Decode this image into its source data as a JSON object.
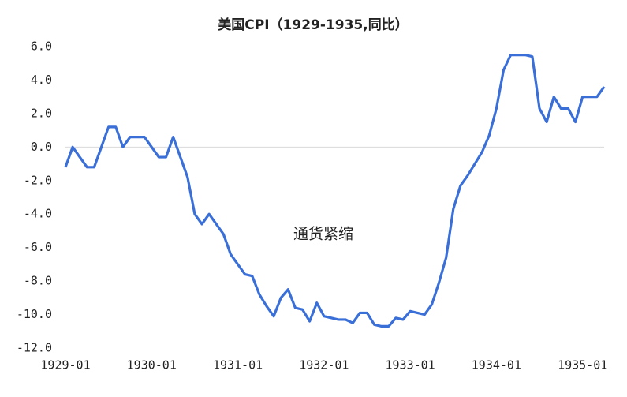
{
  "chart_data": {
    "type": "line",
    "title": "美国CPI（1929-1935,同比）",
    "annotations": [
      "通货紧缩"
    ],
    "categories": [
      "1929-01",
      null,
      null,
      null,
      null,
      null,
      null,
      null,
      null,
      null,
      null,
      null,
      "1930-01",
      null,
      null,
      null,
      null,
      null,
      null,
      null,
      null,
      null,
      null,
      null,
      "1931-01",
      null,
      null,
      null,
      null,
      null,
      null,
      null,
      null,
      null,
      null,
      null,
      "1932-01",
      null,
      null,
      null,
      null,
      null,
      null,
      null,
      null,
      null,
      null,
      null,
      "1933-01",
      null,
      null,
      null,
      null,
      null,
      null,
      null,
      null,
      null,
      null,
      null,
      "1934-01",
      null,
      null,
      null,
      null,
      null,
      null,
      null,
      null,
      null,
      null,
      null,
      "1935-01",
      null,
      null,
      null
    ],
    "values": [
      -1.2,
      0.0,
      -0.6,
      -1.2,
      -1.2,
      0.0,
      1.2,
      1.2,
      0.0,
      0.6,
      0.6,
      0.6,
      0.0,
      -0.6,
      -0.6,
      0.6,
      -0.6,
      -1.8,
      -4.0,
      -4.6,
      -4.0,
      -4.6,
      -5.2,
      -6.4,
      -7.0,
      -7.6,
      -7.7,
      -8.8,
      -9.5,
      -10.1,
      -9.0,
      -8.5,
      -9.6,
      -9.7,
      -10.4,
      -9.3,
      -10.1,
      -10.2,
      -10.3,
      -10.3,
      -10.5,
      -9.9,
      -9.9,
      -10.6,
      -10.7,
      -10.7,
      -10.2,
      -10.3,
      -9.8,
      -9.9,
      -10.0,
      -9.4,
      -8.1,
      -6.6,
      -3.7,
      -2.3,
      -1.7,
      -1.0,
      -0.3,
      0.7,
      2.3,
      4.6,
      5.5,
      5.5,
      5.5,
      5.4,
      2.3,
      1.5,
      3.0,
      2.3,
      2.3,
      1.5,
      3.0,
      3.0,
      3.0,
      3.6
    ],
    "color": "#3a6fd8",
    "ylim": [
      -12,
      6
    ],
    "yticks": [
      {
        "value": -12,
        "label": "-12.0"
      },
      {
        "value": -10,
        "label": "-10.0"
      },
      {
        "value": -8,
        "label": "-8.0"
      },
      {
        "value": -6,
        "label": "-6.0"
      },
      {
        "value": -4,
        "label": "-4.0"
      },
      {
        "value": -2,
        "label": "-2.0"
      },
      {
        "value": 0,
        "label": "0.0"
      },
      {
        "value": 2,
        "label": "2.0"
      },
      {
        "value": 4,
        "label": "4.0"
      },
      {
        "value": 6,
        "label": "6.0"
      }
    ],
    "zero_line": true
  }
}
